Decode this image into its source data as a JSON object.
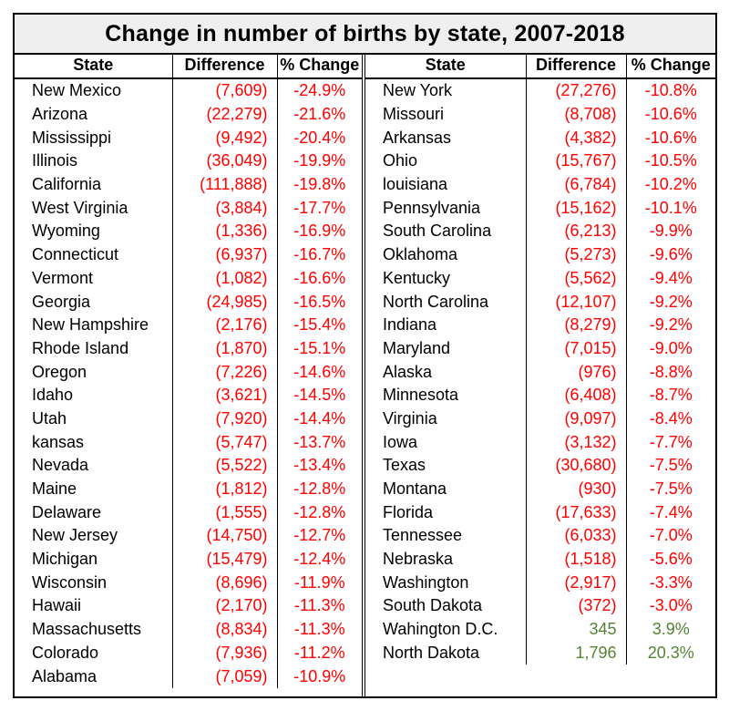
{
  "chart_data": {
    "type": "table",
    "title": "Change in number of births by state, 2007-2018",
    "columns": [
      "State",
      "Difference",
      "% Change"
    ],
    "colors": {
      "negative": "#ff0000",
      "positive": "#548235"
    },
    "left_rows": [
      {
        "state": "New Mexico",
        "diff": "(7,609)",
        "pct": "-24.9%",
        "sign": "neg"
      },
      {
        "state": "Arizona",
        "diff": "(22,279)",
        "pct": "-21.6%",
        "sign": "neg"
      },
      {
        "state": "Mississippi",
        "diff": "(9,492)",
        "pct": "-20.4%",
        "sign": "neg"
      },
      {
        "state": "Illinois",
        "diff": "(36,049)",
        "pct": "-19.9%",
        "sign": "neg"
      },
      {
        "state": "California",
        "diff": "(111,888)",
        "pct": "-19.8%",
        "sign": "neg"
      },
      {
        "state": "West Virginia",
        "diff": "(3,884)",
        "pct": "-17.7%",
        "sign": "neg"
      },
      {
        "state": "Wyoming",
        "diff": "(1,336)",
        "pct": "-16.9%",
        "sign": "neg"
      },
      {
        "state": "Connecticut",
        "diff": "(6,937)",
        "pct": "-16.7%",
        "sign": "neg"
      },
      {
        "state": "Vermont",
        "diff": "(1,082)",
        "pct": "-16.6%",
        "sign": "neg"
      },
      {
        "state": "Georgia",
        "diff": "(24,985)",
        "pct": "-16.5%",
        "sign": "neg"
      },
      {
        "state": "New Hampshire",
        "diff": "(2,176)",
        "pct": "-15.4%",
        "sign": "neg"
      },
      {
        "state": "Rhode Island",
        "diff": "(1,870)",
        "pct": "-15.1%",
        "sign": "neg"
      },
      {
        "state": "Oregon",
        "diff": "(7,226)",
        "pct": "-14.6%",
        "sign": "neg"
      },
      {
        "state": "Idaho",
        "diff": "(3,621)",
        "pct": "-14.5%",
        "sign": "neg"
      },
      {
        "state": "Utah",
        "diff": "(7,920)",
        "pct": "-14.4%",
        "sign": "neg"
      },
      {
        "state": "kansas",
        "diff": "(5,747)",
        "pct": "-13.7%",
        "sign": "neg"
      },
      {
        "state": "Nevada",
        "diff": "(5,522)",
        "pct": "-13.4%",
        "sign": "neg"
      },
      {
        "state": "Maine",
        "diff": "(1,812)",
        "pct": "-12.8%",
        "sign": "neg"
      },
      {
        "state": "Delaware",
        "diff": "(1,555)",
        "pct": "-12.8%",
        "sign": "neg"
      },
      {
        "state": "New Jersey",
        "diff": "(14,750)",
        "pct": "-12.7%",
        "sign": "neg"
      },
      {
        "state": "Michigan",
        "diff": "(15,479)",
        "pct": "-12.4%",
        "sign": "neg"
      },
      {
        "state": "Wisconsin",
        "diff": "(8,696)",
        "pct": "-11.9%",
        "sign": "neg"
      },
      {
        "state": "Hawaii",
        "diff": "(2,170)",
        "pct": "-11.3%",
        "sign": "neg"
      },
      {
        "state": "Massachusetts",
        "diff": "(8,834)",
        "pct": "-11.3%",
        "sign": "neg"
      },
      {
        "state": "Colorado",
        "diff": "(7,936)",
        "pct": "-11.2%",
        "sign": "neg"
      },
      {
        "state": "Alabama",
        "diff": "(7,059)",
        "pct": "-10.9%",
        "sign": "neg"
      }
    ],
    "right_rows": [
      {
        "state": "New York",
        "diff": "(27,276)",
        "pct": "-10.8%",
        "sign": "neg"
      },
      {
        "state": "Missouri",
        "diff": "(8,708)",
        "pct": "-10.6%",
        "sign": "neg"
      },
      {
        "state": "Arkansas",
        "diff": "(4,382)",
        "pct": "-10.6%",
        "sign": "neg"
      },
      {
        "state": "Ohio",
        "diff": "(15,767)",
        "pct": "-10.5%",
        "sign": "neg"
      },
      {
        "state": "louisiana",
        "diff": "(6,784)",
        "pct": "-10.2%",
        "sign": "neg"
      },
      {
        "state": "Pennsylvania",
        "diff": "(15,162)",
        "pct": "-10.1%",
        "sign": "neg"
      },
      {
        "state": "South Carolina",
        "diff": "(6,213)",
        "pct": "-9.9%",
        "sign": "neg"
      },
      {
        "state": "Oklahoma",
        "diff": "(5,273)",
        "pct": "-9.6%",
        "sign": "neg"
      },
      {
        "state": "Kentucky",
        "diff": "(5,562)",
        "pct": "-9.4%",
        "sign": "neg"
      },
      {
        "state": "North Carolina",
        "diff": "(12,107)",
        "pct": "-9.2%",
        "sign": "neg"
      },
      {
        "state": "Indiana",
        "diff": "(8,279)",
        "pct": "-9.2%",
        "sign": "neg"
      },
      {
        "state": "Maryland",
        "diff": "(7,015)",
        "pct": "-9.0%",
        "sign": "neg"
      },
      {
        "state": "Alaska",
        "diff": "(976)",
        "pct": "-8.8%",
        "sign": "neg"
      },
      {
        "state": "Minnesota",
        "diff": "(6,408)",
        "pct": "-8.7%",
        "sign": "neg"
      },
      {
        "state": "Virginia",
        "diff": "(9,097)",
        "pct": "-8.4%",
        "sign": "neg"
      },
      {
        "state": "Iowa",
        "diff": "(3,132)",
        "pct": "-7.7%",
        "sign": "neg"
      },
      {
        "state": "Texas",
        "diff": "(30,680)",
        "pct": "-7.5%",
        "sign": "neg"
      },
      {
        "state": "Montana",
        "diff": "(930)",
        "pct": "-7.5%",
        "sign": "neg"
      },
      {
        "state": "Florida",
        "diff": "(17,633)",
        "pct": "-7.4%",
        "sign": "neg"
      },
      {
        "state": "Tennessee",
        "diff": "(6,033)",
        "pct": "-7.0%",
        "sign": "neg"
      },
      {
        "state": "Nebraska",
        "diff": "(1,518)",
        "pct": "-5.6%",
        "sign": "neg"
      },
      {
        "state": "Washington",
        "diff": "(2,917)",
        "pct": "-3.3%",
        "sign": "neg"
      },
      {
        "state": "South Dakota",
        "diff": "(372)",
        "pct": "-3.0%",
        "sign": "neg"
      },
      {
        "state": "Wahington D.C.",
        "diff": "345",
        "pct": "3.9%",
        "sign": "pos"
      },
      {
        "state": "North Dakota",
        "diff": "1,796",
        "pct": "20.3%",
        "sign": "pos"
      }
    ]
  }
}
